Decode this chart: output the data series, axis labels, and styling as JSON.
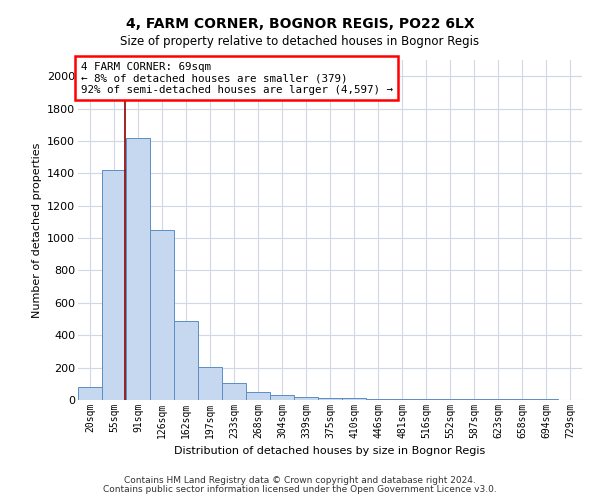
{
  "title1": "4, FARM CORNER, BOGNOR REGIS, PO22 6LX",
  "title2": "Size of property relative to detached houses in Bognor Regis",
  "xlabel": "Distribution of detached houses by size in Bognor Regis",
  "ylabel": "Number of detached properties",
  "bin_labels": [
    "20sqm",
    "55sqm",
    "91sqm",
    "126sqm",
    "162sqm",
    "197sqm",
    "233sqm",
    "268sqm",
    "304sqm",
    "339sqm",
    "375sqm",
    "410sqm",
    "446sqm",
    "481sqm",
    "516sqm",
    "552sqm",
    "587sqm",
    "623sqm",
    "658sqm",
    "694sqm",
    "729sqm"
  ],
  "bar_values": [
    80,
    1420,
    1620,
    1050,
    490,
    205,
    105,
    50,
    30,
    20,
    15,
    10,
    5,
    5,
    5,
    5,
    5,
    5,
    5,
    5,
    0
  ],
  "bar_color": "#c5d8f0",
  "bar_edge_color": "#5b8ec4",
  "red_line_x": 1.45,
  "annotation_title": "4 FARM CORNER: 69sqm",
  "annotation_line1": "← 8% of detached houses are smaller (379)",
  "annotation_line2": "92% of semi-detached houses are larger (4,597) →",
  "ylim": [
    0,
    2100
  ],
  "yticks": [
    0,
    200,
    400,
    600,
    800,
    1000,
    1200,
    1400,
    1600,
    1800,
    2000
  ],
  "footnote1": "Contains HM Land Registry data © Crown copyright and database right 2024.",
  "footnote2": "Contains public sector information licensed under the Open Government Licence v3.0.",
  "bg_color": "#ffffff",
  "grid_color": "#d0d8e8"
}
